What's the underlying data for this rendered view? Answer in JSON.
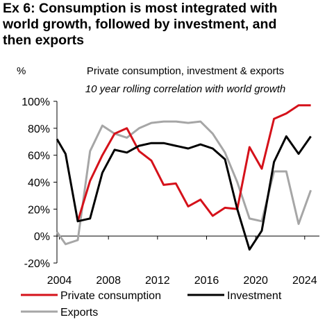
{
  "header": {
    "title_lines": [
      "Ex 6: Consumption is most integrated with",
      "world growth, followed by investment, and",
      "then exports"
    ]
  },
  "chart_data": {
    "type": "line",
    "title": "Private consumption, investment & exports",
    "subtitle": "10 year rolling correlation with world growth",
    "ylabel": "%",
    "xlabel": "",
    "xlim": [
      2003.8,
      2025.2
    ],
    "ylim": [
      -20,
      100
    ],
    "x_ticks": [
      2004,
      2008,
      2012,
      2016,
      2020,
      2024
    ],
    "y_ticks": [
      -20,
      0,
      20,
      40,
      60,
      80,
      100
    ],
    "y_tick_labels": [
      "-20%",
      "0%",
      "20%",
      "40%",
      "60%",
      "80%",
      "100%"
    ],
    "x": [
      2003.8,
      2004.5,
      2005.5,
      2006.5,
      2007.5,
      2008.5,
      2009.5,
      2010.5,
      2011.5,
      2012.5,
      2013.5,
      2014.5,
      2015.5,
      2016.5,
      2017.5,
      2018.5,
      2019.5,
      2020.5,
      2021.5,
      2022.5,
      2023.5,
      2024.5
    ],
    "series": [
      {
        "name": "Private consumption",
        "color": "#d5111a",
        "values": [
          null,
          null,
          11,
          41,
          60,
          76,
          80,
          63,
          56,
          38,
          39,
          22,
          27,
          15,
          21,
          20,
          66,
          50,
          87,
          91,
          97,
          97
        ]
      },
      {
        "name": "Investment",
        "color": "#000000",
        "values": [
          72,
          61,
          11,
          13,
          47,
          64,
          62,
          67,
          69,
          69,
          67,
          65,
          68,
          65,
          57,
          20,
          -10,
          4,
          55,
          74,
          61,
          74
        ]
      },
      {
        "name": "Exports",
        "color": "#a6a6a6",
        "values": [
          3,
          -6,
          -3,
          63,
          82,
          76,
          73,
          80,
          84,
          85,
          85,
          84,
          85,
          76,
          62,
          40,
          13,
          11,
          48,
          48,
          9,
          34
        ]
      }
    ],
    "legend_position": "bottom",
    "grid": false
  }
}
